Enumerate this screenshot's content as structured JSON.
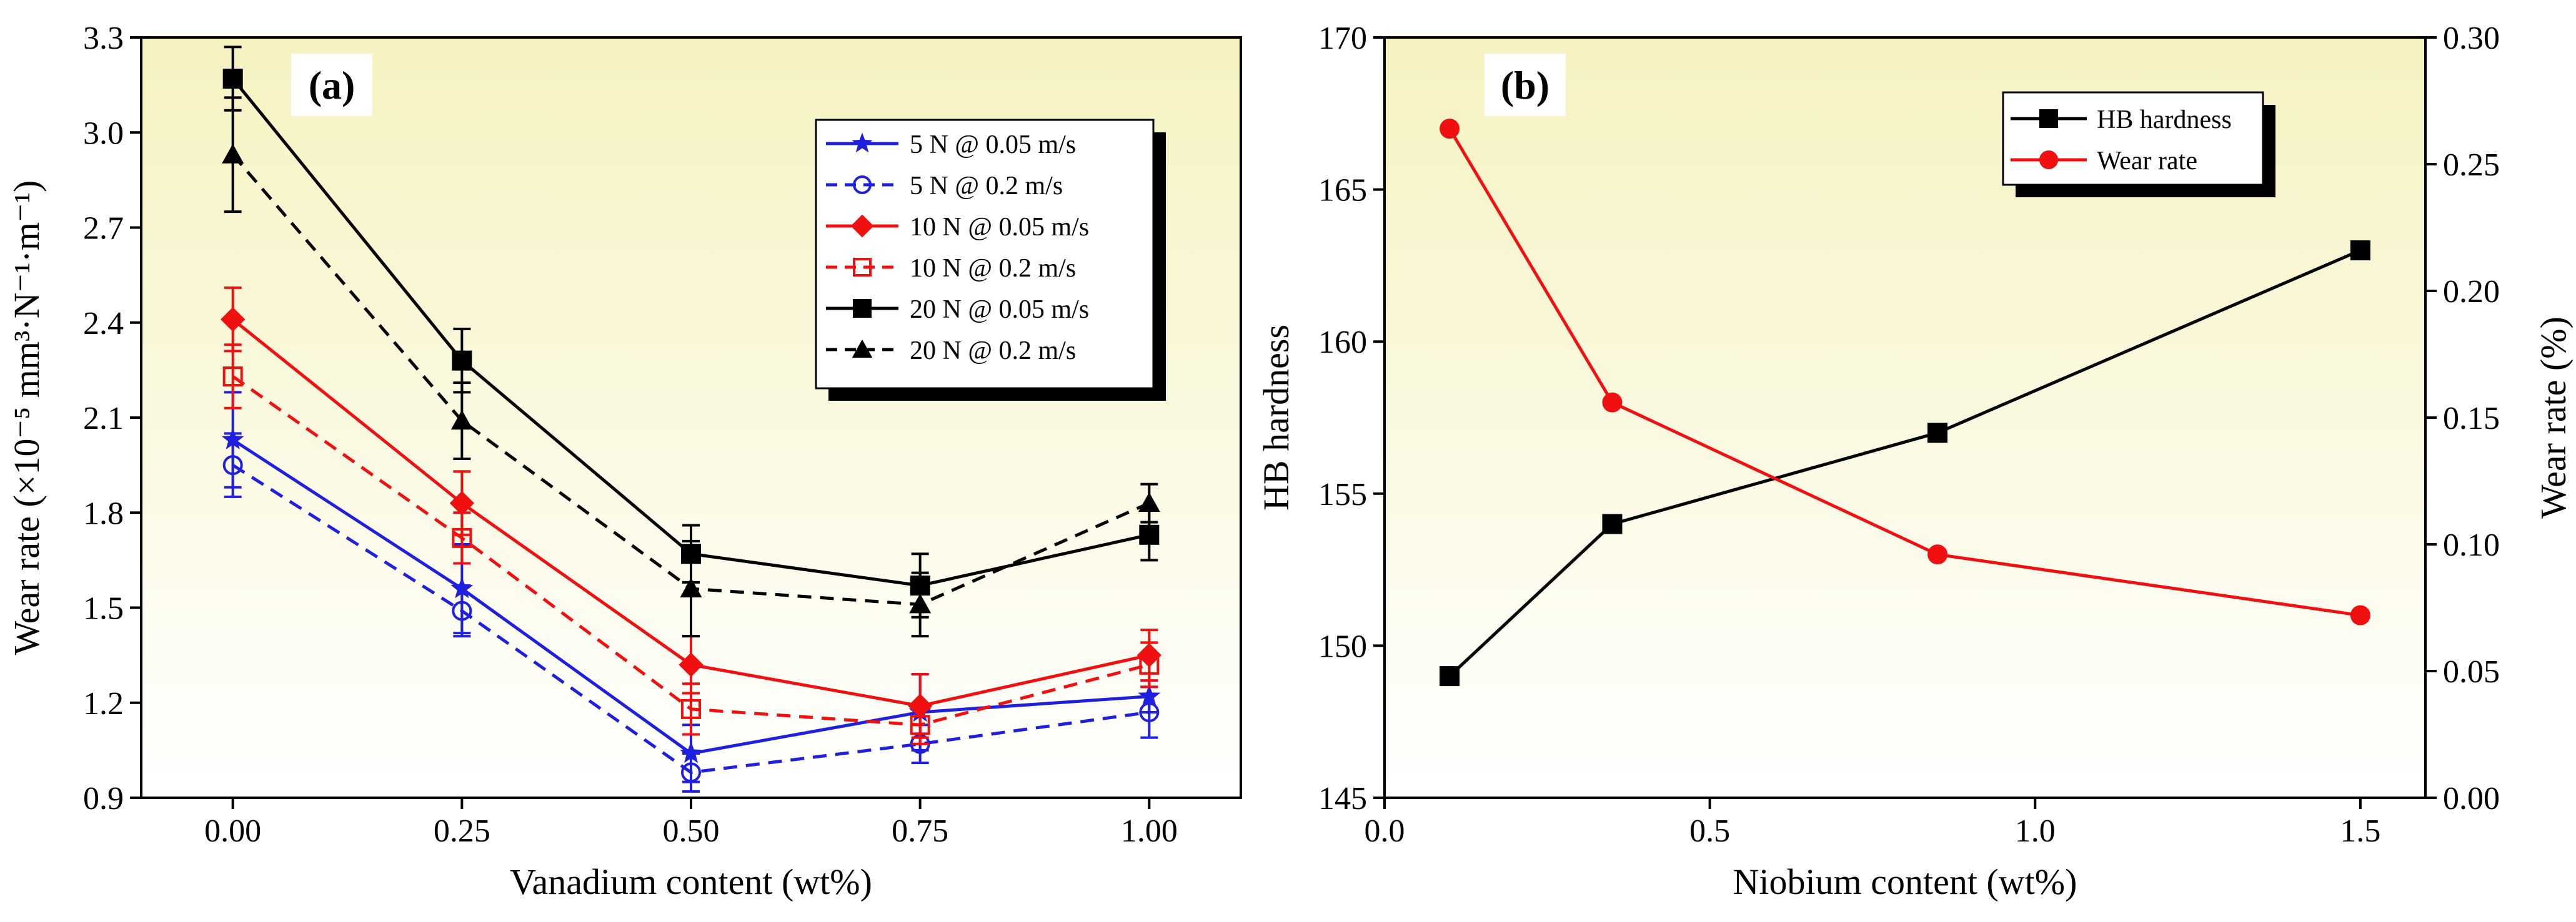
{
  "colors": {
    "blue": "#1f1fe0",
    "red": "#f01010",
    "black": "#000000",
    "bg_top": "#f6f2c0",
    "bg_bottom": "#ffffff"
  },
  "chart_data": [
    {
      "type": "line",
      "panel_label": "(a)",
      "title": "",
      "xlabel": "Vanadium content (wt%)",
      "ylabel": "Wear rate (×10⁻⁵ mm³·N⁻¹·m⁻¹)",
      "xlim": [
        -0.1,
        1.1
      ],
      "ylim": [
        0.9,
        3.3
      ],
      "x": [
        0.0,
        0.25,
        0.5,
        0.75,
        1.0
      ],
      "x_tick_labels": [
        "0.00",
        "0.25",
        "0.50",
        "0.75",
        "1.00"
      ],
      "y_ticks": [
        0.9,
        1.2,
        1.5,
        1.8,
        2.1,
        2.4,
        2.7,
        3.0,
        3.3
      ],
      "y_tick_labels": [
        "0.9",
        "1.2",
        "1.5",
        "1.8",
        "2.1",
        "2.4",
        "2.7",
        "3.0",
        "3.3"
      ],
      "legend_position": "top-right",
      "series": [
        {
          "name": "5 N @ 0.05 m/s",
          "color": "blue",
          "dash": false,
          "marker": "star",
          "values": [
            2.03,
            1.56,
            1.04,
            1.17,
            1.22
          ],
          "errors": [
            0.15,
            0.14,
            0.09,
            0.12,
            0.05
          ]
        },
        {
          "name": "5 N @ 0.2 m/s",
          "color": "blue",
          "dash": true,
          "marker": "circle-open",
          "values": [
            1.95,
            1.49,
            0.98,
            1.07,
            1.17
          ],
          "errors": [
            0.1,
            0.08,
            0.06,
            0.06,
            0.08
          ]
        },
        {
          "name": "10 N @ 0.05 m/s",
          "color": "red",
          "dash": false,
          "marker": "diamond",
          "values": [
            2.41,
            1.83,
            1.32,
            1.19,
            1.35
          ],
          "errors": [
            0.1,
            0.1,
            0.09,
            0.1,
            0.08
          ]
        },
        {
          "name": "10 N @ 0.2 m/s",
          "color": "red",
          "dash": true,
          "marker": "square-open",
          "values": [
            2.23,
            1.72,
            1.18,
            1.13,
            1.32
          ],
          "errors": [
            0.1,
            0.08,
            0.08,
            0.06,
            0.07
          ]
        },
        {
          "name": "20 N @ 0.05 m/s",
          "color": "black",
          "dash": false,
          "marker": "square",
          "values": [
            3.17,
            2.28,
            1.67,
            1.57,
            1.73
          ],
          "errors": [
            0.1,
            0.1,
            0.09,
            0.1,
            0.08
          ]
        },
        {
          "name": "20 N @ 0.2 m/s",
          "color": "black",
          "dash": true,
          "marker": "triangle",
          "values": [
            2.93,
            2.09,
            1.56,
            1.51,
            1.83
          ],
          "errors": [
            0.18,
            0.12,
            0.15,
            0.1,
            0.06
          ]
        }
      ]
    },
    {
      "type": "line",
      "panel_label": "(b)",
      "title": "",
      "xlabel": "Niobium content (wt%)",
      "ylabel": "HB hardness",
      "y2label": "Wear rate (%)",
      "xlim": [
        0.0,
        1.6
      ],
      "ylim": [
        145,
        170
      ],
      "y2lim": [
        0.0,
        0.3
      ],
      "x_ticks": [
        0.0,
        0.5,
        1.0,
        1.5
      ],
      "x_tick_labels": [
        "0.0",
        "0.5",
        "1.0",
        "1.5"
      ],
      "y_ticks": [
        145,
        150,
        155,
        160,
        165,
        170
      ],
      "y_tick_labels": [
        "145",
        "150",
        "155",
        "160",
        "165",
        "170"
      ],
      "y2_ticks": [
        0.0,
        0.05,
        0.1,
        0.15,
        0.2,
        0.25,
        0.3
      ],
      "y2_tick_labels": [
        "0.00",
        "0.05",
        "0.10",
        "0.15",
        "0.20",
        "0.25",
        "0.30"
      ],
      "legend_position": "top-right",
      "series": [
        {
          "name": "HB hardness",
          "color": "black",
          "axis": "left",
          "marker": "square",
          "x": [
            0.1,
            0.35,
            0.85,
            1.5
          ],
          "values": [
            149,
            154,
            157,
            163
          ]
        },
        {
          "name": "Wear rate",
          "color": "red",
          "axis": "right",
          "marker": "circle",
          "x": [
            0.1,
            0.35,
            0.85,
            1.5
          ],
          "values": [
            0.264,
            0.156,
            0.096,
            0.072
          ]
        }
      ]
    }
  ]
}
